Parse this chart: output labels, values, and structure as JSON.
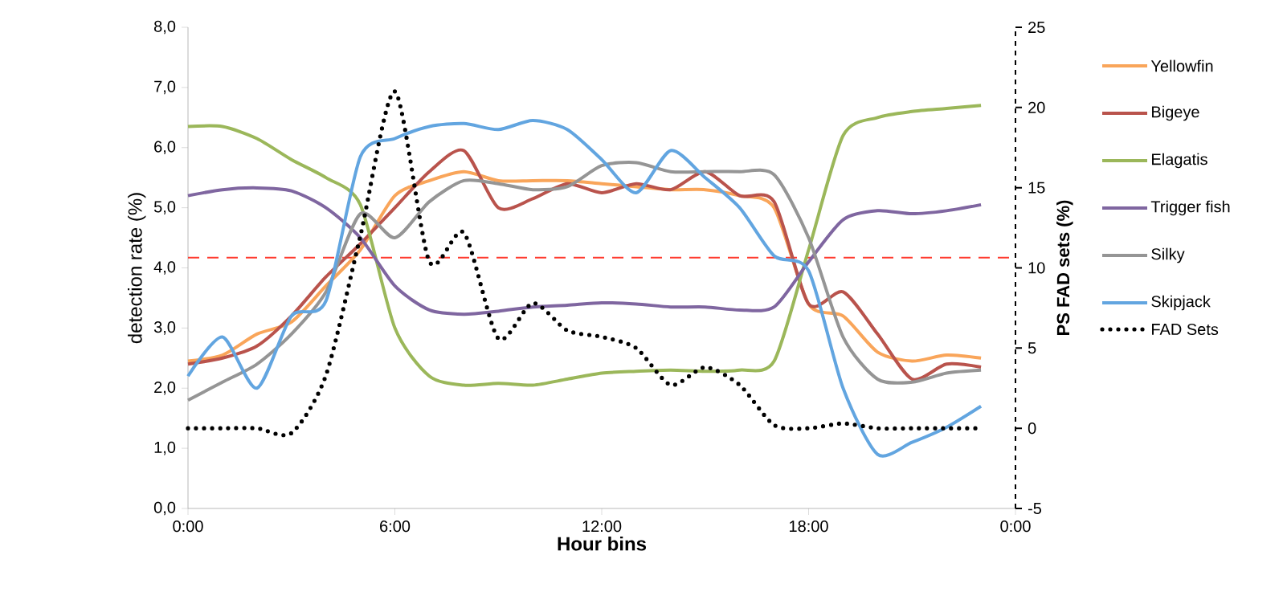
{
  "chart_data": {
    "type": "line",
    "xlabel": "Hour bins",
    "ylabel": "detection rate (%)",
    "y2label": "PS FAD sets (%)",
    "x": [
      0,
      1,
      2,
      3,
      4,
      5,
      6,
      7,
      8,
      9,
      10,
      11,
      12,
      13,
      14,
      15,
      16,
      17,
      18,
      19,
      20,
      21,
      22,
      23
    ],
    "xlim": [
      0,
      24
    ],
    "xticks": [
      {
        "value": 0,
        "label": "0:00"
      },
      {
        "value": 6,
        "label": "6:00"
      },
      {
        "value": 12,
        "label": "12:00"
      },
      {
        "value": 18,
        "label": "18:00"
      },
      {
        "value": 24,
        "label": "0:00"
      }
    ],
    "ylim": [
      0,
      8
    ],
    "yticks": [
      {
        "value": 0,
        "label": "0,0"
      },
      {
        "value": 1,
        "label": "1,0"
      },
      {
        "value": 2,
        "label": "2,0"
      },
      {
        "value": 3,
        "label": "3,0"
      },
      {
        "value": 4,
        "label": "4,0"
      },
      {
        "value": 5,
        "label": "5,0"
      },
      {
        "value": 6,
        "label": "6,0"
      },
      {
        "value": 7,
        "label": "7,0"
      },
      {
        "value": 8,
        "label": "8,0"
      }
    ],
    "y2lim": [
      -5,
      25
    ],
    "y2ticks": [
      -5,
      0,
      5,
      10,
      15,
      20,
      25
    ],
    "legend": "right",
    "line_style": "solid",
    "ref_lines": [
      {
        "axis": "y",
        "value": 4.17,
        "color": "#ff3b2f",
        "line_style": "dashed"
      }
    ],
    "series": [
      {
        "name": "Yellowfin",
        "color": "#f9a55a",
        "values": [
          2.45,
          2.55,
          2.9,
          3.1,
          3.7,
          4.3,
          5.2,
          5.45,
          5.6,
          5.45,
          5.45,
          5.45,
          5.4,
          5.35,
          5.3,
          5.3,
          5.2,
          5.0,
          3.4,
          3.2,
          2.6,
          2.45,
          2.55,
          2.5
        ]
      },
      {
        "name": "Bigeye",
        "color": "#b9534c",
        "values": [
          2.4,
          2.5,
          2.7,
          3.2,
          3.85,
          4.4,
          5.0,
          5.6,
          5.95,
          5.0,
          5.15,
          5.4,
          5.25,
          5.4,
          5.3,
          5.6,
          5.2,
          5.1,
          3.4,
          3.6,
          2.9,
          2.15,
          2.4,
          2.35
        ]
      },
      {
        "name": "Elagatis",
        "color": "#9bb75a",
        "values": [
          6.35,
          6.35,
          6.15,
          5.8,
          5.5,
          5.05,
          3.0,
          2.2,
          2.05,
          2.08,
          2.05,
          2.15,
          2.25,
          2.28,
          2.3,
          2.28,
          2.3,
          2.45,
          4.3,
          6.2,
          6.5,
          6.6,
          6.65,
          6.7
        ]
      },
      {
        "name": "Trigger fish",
        "color": "#7f66a0",
        "values": [
          5.2,
          5.3,
          5.33,
          5.28,
          5.0,
          4.5,
          3.7,
          3.3,
          3.23,
          3.28,
          3.35,
          3.38,
          3.42,
          3.4,
          3.35,
          3.35,
          3.3,
          3.35,
          4.1,
          4.8,
          4.95,
          4.9,
          4.95,
          5.05
        ]
      },
      {
        "name": "Silky",
        "color": "#959595",
        "values": [
          1.8,
          2.1,
          2.4,
          2.9,
          3.6,
          4.9,
          4.5,
          5.1,
          5.45,
          5.4,
          5.3,
          5.35,
          5.7,
          5.75,
          5.6,
          5.6,
          5.6,
          5.55,
          4.5,
          2.85,
          2.15,
          2.1,
          2.25,
          2.3
        ]
      },
      {
        "name": "Skipjack",
        "color": "#62a5e0",
        "values": [
          2.2,
          2.85,
          2.0,
          3.2,
          3.45,
          5.85,
          6.15,
          6.35,
          6.4,
          6.3,
          6.45,
          6.3,
          5.8,
          5.25,
          5.95,
          5.5,
          5.0,
          4.2,
          3.95,
          2.0,
          0.9,
          1.1,
          1.35,
          1.7
        ]
      },
      {
        "name": "FAD Sets",
        "color": "#000000",
        "axis": "y2",
        "line_style": "dotted",
        "values": [
          0,
          0,
          0,
          -0.3,
          3.3,
          12,
          21,
          10.4,
          12.2,
          5.6,
          7.8,
          6.1,
          5.7,
          5.0,
          2.7,
          3.8,
          2.7,
          0.2,
          0,
          0.3,
          0,
          0,
          0,
          0
        ]
      }
    ]
  }
}
